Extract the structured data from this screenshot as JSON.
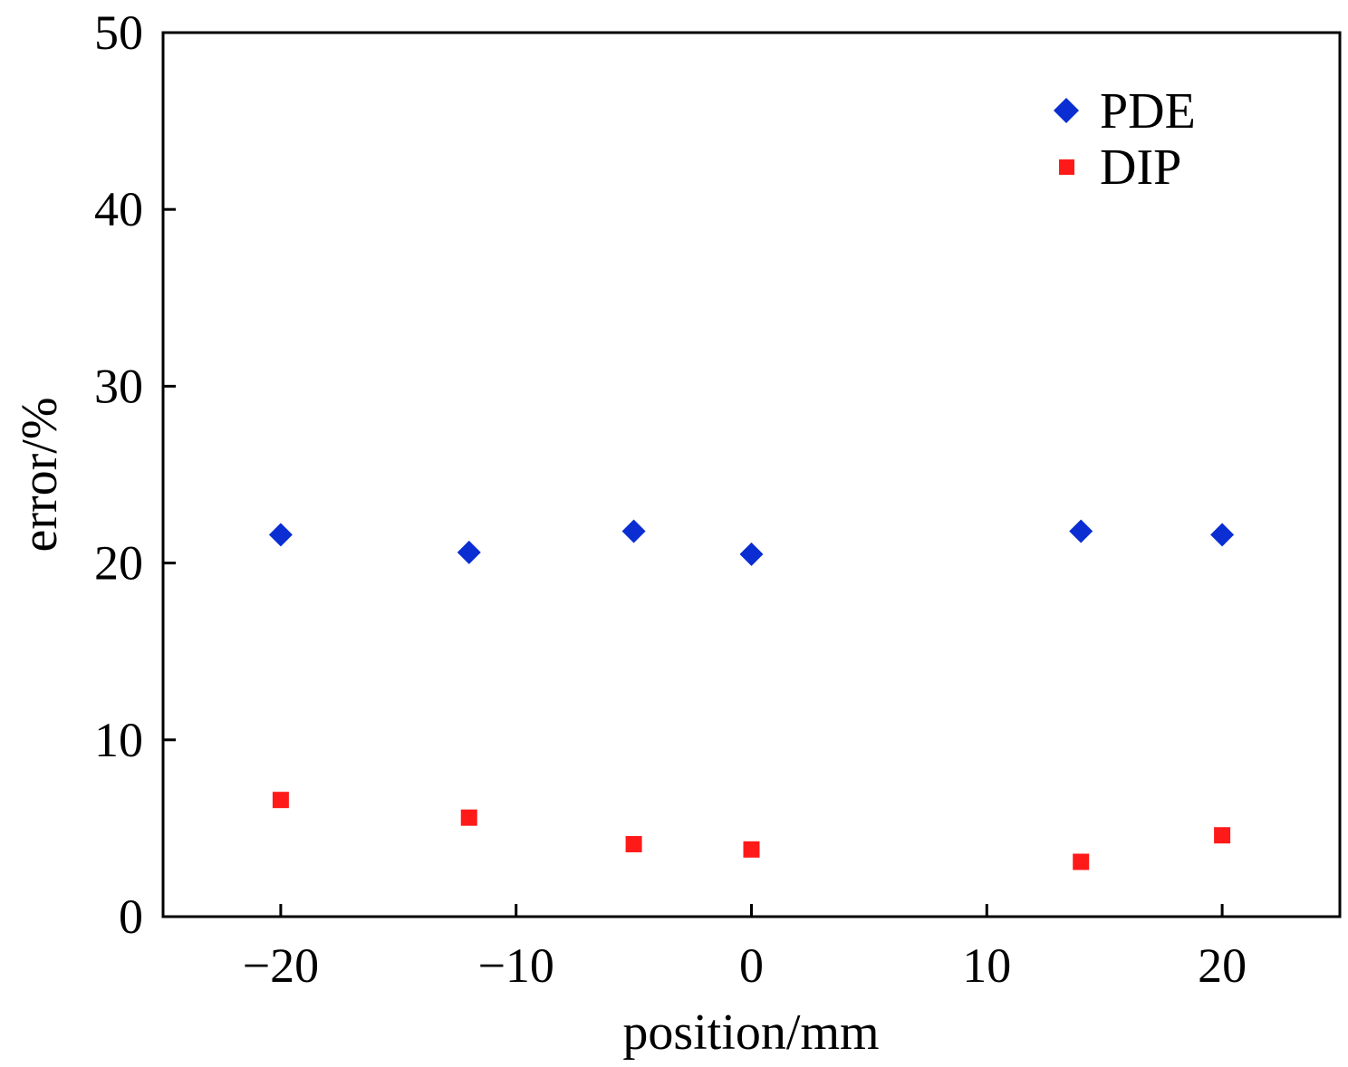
{
  "chart_data": {
    "type": "scatter",
    "title": "",
    "xlabel": "position/mm",
    "ylabel": "error/%",
    "xlim": [
      -25,
      25
    ],
    "ylim": [
      0,
      50
    ],
    "xticks": [
      -20,
      -10,
      0,
      10,
      20
    ],
    "xtick_labels": [
      "−20",
      "−10",
      "0",
      "10",
      "20"
    ],
    "yticks": [
      0,
      10,
      20,
      30,
      40,
      50
    ],
    "ytick_labels": [
      "0",
      "10",
      "20",
      "30",
      "40",
      "50"
    ],
    "grid": false,
    "legend_position": "top-right",
    "series": [
      {
        "name": "PDE",
        "marker": "diamond",
        "color": "#0a2ed1",
        "points": [
          [
            -20,
            21.6
          ],
          [
            -12,
            20.6
          ],
          [
            -5,
            21.8
          ],
          [
            0,
            20.5
          ],
          [
            14,
            21.8
          ],
          [
            20,
            21.6
          ]
        ]
      },
      {
        "name": "DIP",
        "marker": "square",
        "color": "#ff1a1a",
        "points": [
          [
            -20,
            6.6
          ],
          [
            -12,
            5.6
          ],
          [
            -5,
            4.1
          ],
          [
            0,
            3.8
          ],
          [
            14,
            3.1
          ],
          [
            20,
            4.6
          ]
        ]
      }
    ]
  }
}
